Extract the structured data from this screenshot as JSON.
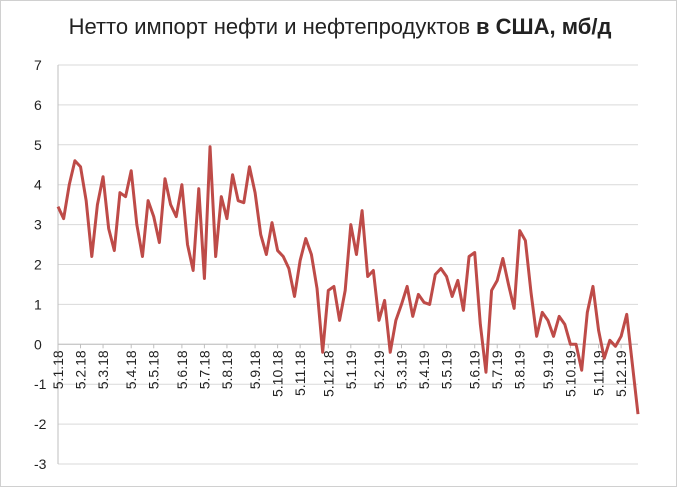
{
  "chart_data": {
    "type": "line",
    "title": [
      "Нетто импорт нефти и нефтепродуктов",
      "в США, мб/д"
    ],
    "categories": [
      "5.1.18",
      null,
      null,
      null,
      "5.2.18",
      null,
      null,
      null,
      "5.3.18",
      null,
      null,
      null,
      null,
      "5.4.18",
      null,
      null,
      null,
      "5.5.18",
      null,
      null,
      null,
      null,
      "5.6.18",
      null,
      null,
      null,
      "5.7.18",
      null,
      null,
      null,
      "5.8.18",
      null,
      null,
      null,
      null,
      "5.9.18",
      null,
      null,
      null,
      "5.10.18",
      null,
      null,
      null,
      "5.11.18",
      null,
      null,
      null,
      null,
      "5.12.18",
      null,
      null,
      null,
      "5.1.19",
      null,
      null,
      null,
      null,
      "5.2.19",
      null,
      null,
      null,
      "5.3.19",
      null,
      null,
      null,
      "5.4.19",
      null,
      null,
      null,
      "5.5.19",
      null,
      null,
      null,
      null,
      "5.6.19",
      null,
      null,
      null,
      "5.7.19",
      null,
      null,
      null,
      "5.8.19",
      null,
      null,
      null,
      null,
      "5.9.19",
      null,
      null,
      null,
      "5.10.19",
      null,
      null,
      null,
      null,
      "5.11.19",
      null,
      null,
      null,
      "5.12.19",
      null,
      null,
      null
    ],
    "series": [
      {
        "color": "#be4b48",
        "values": [
          3.45,
          3.15,
          4.0,
          4.6,
          4.45,
          3.6,
          2.2,
          3.5,
          4.2,
          2.9,
          2.35,
          3.8,
          3.7,
          4.35,
          3.0,
          2.2,
          3.6,
          3.2,
          2.55,
          4.15,
          3.5,
          3.2,
          4.0,
          2.5,
          1.85,
          3.9,
          1.65,
          4.95,
          2.2,
          3.7,
          3.15,
          4.25,
          3.6,
          3.55,
          4.45,
          3.8,
          2.75,
          2.25,
          3.05,
          2.35,
          2.2,
          1.9,
          1.2,
          2.1,
          2.65,
          2.25,
          1.4,
          -0.2,
          1.35,
          1.45,
          0.6,
          1.35,
          3.0,
          2.25,
          3.35,
          1.7,
          1.85,
          0.6,
          1.1,
          -0.2,
          0.6,
          1.0,
          1.45,
          0.7,
          1.25,
          1.05,
          1.0,
          1.75,
          1.9,
          1.7,
          1.2,
          1.6,
          0.85,
          2.2,
          2.3,
          0.5,
          -0.7,
          1.35,
          1.6,
          2.15,
          1.5,
          0.9,
          2.85,
          2.6,
          1.3,
          0.2,
          0.8,
          0.6,
          0.2,
          0.7,
          0.5,
          0.0,
          0.0,
          -0.65,
          0.8,
          1.45,
          0.35,
          -0.35,
          0.1,
          -0.05,
          0.2,
          0.75,
          -0.5,
          -1.75
        ]
      }
    ],
    "ylim": [
      -3,
      7
    ],
    "yticks": [
      -3,
      -2,
      -1,
      0,
      1,
      2,
      3,
      4,
      5,
      6,
      7
    ],
    "grid": true
  }
}
